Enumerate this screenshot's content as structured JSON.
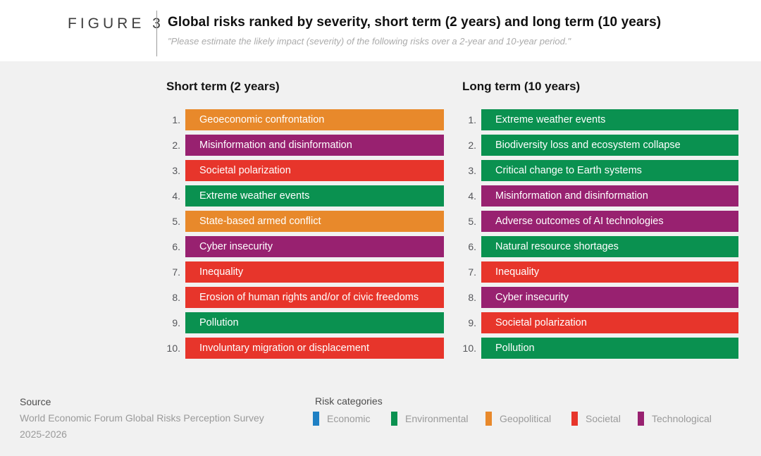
{
  "figure": {
    "label": "FIGURE 3",
    "title": "Global risks ranked by severity, short term (2 years) and long term (10 years)",
    "subtitle": "\"Please estimate the likely impact (severity) of the following risks over a 2-year and 10-year period.\""
  },
  "chart_data": {
    "type": "table",
    "title": "Global risks ranked by severity, short term (2 years) and long term (10 years)",
    "legend_position": "bottom",
    "columns": [
      {
        "heading": "Short term (2 years)",
        "items": [
          {
            "rank": "1.",
            "label": "Geoeconomic confrontation",
            "category": "Geopolitical"
          },
          {
            "rank": "2.",
            "label": "Misinformation and disinformation",
            "category": "Technological"
          },
          {
            "rank": "3.",
            "label": "Societal polarization",
            "category": "Societal"
          },
          {
            "rank": "4.",
            "label": "Extreme weather events",
            "category": "Environmental"
          },
          {
            "rank": "5.",
            "label": "State-based armed conflict",
            "category": "Geopolitical"
          },
          {
            "rank": "6.",
            "label": "Cyber insecurity",
            "category": "Technological"
          },
          {
            "rank": "7.",
            "label": "Inequality",
            "category": "Societal"
          },
          {
            "rank": "8.",
            "label": "Erosion of human rights and/or of civic freedoms",
            "category": "Societal"
          },
          {
            "rank": "9.",
            "label": "Pollution",
            "category": "Environmental"
          },
          {
            "rank": "10.",
            "label": "Involuntary migration or displacement",
            "category": "Societal"
          }
        ]
      },
      {
        "heading": "Long term (10 years)",
        "items": [
          {
            "rank": "1.",
            "label": "Extreme weather events",
            "category": "Environmental"
          },
          {
            "rank": "2.",
            "label": "Biodiversity loss and ecosystem collapse",
            "category": "Environmental"
          },
          {
            "rank": "3.",
            "label": "Critical change to Earth systems",
            "category": "Environmental"
          },
          {
            "rank": "4.",
            "label": "Misinformation and disinformation",
            "category": "Technological"
          },
          {
            "rank": "5.",
            "label": "Adverse outcomes of AI technologies",
            "category": "Technological"
          },
          {
            "rank": "6.",
            "label": "Natural resource shortages",
            "category": "Environmental"
          },
          {
            "rank": "7.",
            "label": "Inequality",
            "category": "Societal"
          },
          {
            "rank": "8.",
            "label": "Cyber insecurity",
            "category": "Technological"
          },
          {
            "rank": "9.",
            "label": "Societal polarization",
            "category": "Societal"
          },
          {
            "rank": "10.",
            "label": "Pollution",
            "category": "Environmental"
          }
        ]
      }
    ]
  },
  "category_colors": {
    "Economic": "#1F80C4",
    "Environmental": "#0A9150",
    "Geopolitical": "#E8892B",
    "Societal": "#E7352B",
    "Technological": "#982170"
  },
  "legend": {
    "heading": "Risk categories",
    "items": [
      {
        "label": "Economic",
        "category": "Economic"
      },
      {
        "label": "Environmental",
        "category": "Environmental"
      },
      {
        "label": "Geopolitical",
        "category": "Geopolitical"
      },
      {
        "label": "Societal",
        "category": "Societal"
      },
      {
        "label": "Technological",
        "category": "Technological"
      }
    ]
  },
  "source": {
    "heading": "Source",
    "lines": [
      "World Economic Forum Global Risks Perception Survey",
      "2025-2026"
    ]
  }
}
